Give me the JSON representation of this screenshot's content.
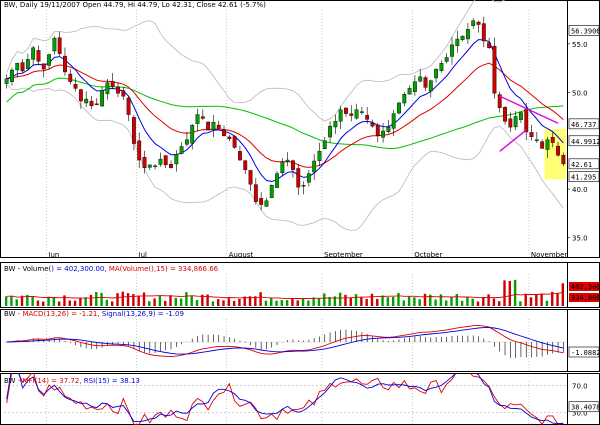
{
  "header": {
    "symbol": "BW",
    "info": ", Daily 19/11/2007 Open 44.79, Hi 44.79, Lo 42.31, Close 42.61 (-5.7%)"
  },
  "months": [
    "Jun",
    "Jul",
    "August",
    "September",
    "October",
    "November"
  ],
  "price_ticks": [
    "55.0",
    "50.0",
    "40.0",
    "35.0"
  ],
  "price_badges": {
    "top": "56.3906",
    "ma_high": "46.737",
    "sma": "44.9912",
    "close": "42.61",
    "bb_low": "41.295"
  },
  "volume": {
    "symbol": "BW",
    "prefix": " - Volume(",
    "value": ") = 402,300.00, ",
    "ma": "MA(Volume(",
    "ma_val": "),15) = 334,866.66",
    "badge_upper": "402,300",
    "badge_lower": "334,866"
  },
  "macd": {
    "symbol": "BW",
    "macd": " - MACD(13,26) = -1.21, ",
    "signal": "Signal(13,26,9) = -1.09",
    "badge": "-1.08829"
  },
  "mfi": {
    "symbol": "BW",
    "mfi": " - MFI(14) = 37.72, ",
    "rsi": "RSI(15) = 38.13",
    "ticks": [
      "70.0",
      "30.0"
    ],
    "badge": "38.4078"
  },
  "colors": {
    "bull": "#00a000",
    "bear": "#d00000",
    "ma_red": "#e00000",
    "ma_blue": "#0000e0",
    "ma_green": "#00c000",
    "bands": "#b8b8b8",
    "wedge": "#e000e0",
    "highlight": "#ffff66"
  },
  "chart_data": {
    "type": "candlestick",
    "title": "BW, Daily 19/11/2007 Open 44.79, Hi 44.79, Lo 42.31, Close 42.61 (-5.7%)",
    "ylim": [
      33.5,
      58.5
    ],
    "x_ticks": [
      "Jun",
      "Jul",
      "August",
      "September",
      "October",
      "November"
    ],
    "close_series": [
      51.4,
      52.3,
      53.0,
      52.2,
      53.4,
      54.6,
      53.2,
      52.4,
      53.9,
      55.6,
      54.0,
      52.1,
      51.1,
      50.4,
      49.1,
      49.3,
      48.6,
      48.8,
      50.2,
      51.0,
      50.6,
      49.9,
      49.6,
      47.7,
      44.7,
      43.0,
      42.2,
      42.5,
      42.4,
      43.1,
      42.5,
      42.2,
      43.6,
      44.4,
      45.1,
      46.6,
      47.7,
      47.3,
      46.1,
      46.9,
      46.3,
      45.5,
      45.2,
      44.3,
      43.0,
      42.0,
      40.5,
      38.7,
      38.4,
      38.8,
      40.4,
      41.6,
      42.8,
      43.0,
      42.0,
      40.2,
      40.4,
      41.6,
      42.9,
      43.9,
      45.0,
      46.5,
      47.0,
      48.2,
      47.8,
      47.6,
      48.2,
      48.0,
      47.2,
      46.5,
      45.5,
      46.0,
      46.4,
      47.8,
      48.9,
      49.8,
      50.4,
      51.1,
      51.6,
      50.5,
      51.2,
      52.4,
      53.0,
      53.6,
      54.9,
      55.5,
      55.8,
      56.5,
      57.4,
      57.0,
      55.3,
      54.6,
      49.9,
      48.4,
      47.0,
      46.4,
      47.5,
      47.9,
      45.9,
      45.4,
      45.1,
      44.2,
      45.1,
      44.8,
      43.5,
      42.6
    ],
    "legend": [
      "MA (red)",
      "MA (blue)",
      "SMA (green)",
      "Bollinger bands (grey)"
    ]
  }
}
